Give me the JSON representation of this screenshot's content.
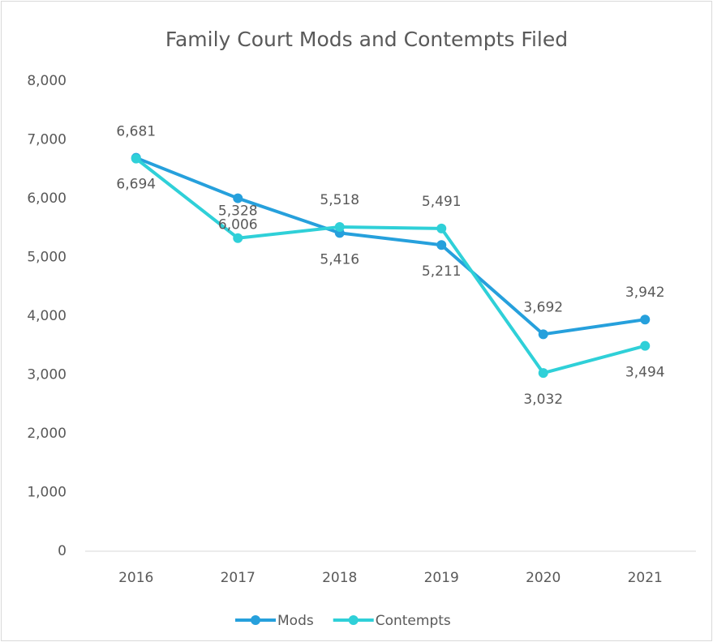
{
  "chart_data": {
    "type": "line",
    "title": "Family Court Mods and Contempts Filed",
    "categories": [
      "2016",
      "2017",
      "2018",
      "2019",
      "2020",
      "2021"
    ],
    "series": [
      {
        "name": "Mods",
        "color": "#26a0dc",
        "values": [
          6694,
          6006,
          5416,
          5211,
          3692,
          3942
        ]
      },
      {
        "name": "Contempts",
        "color": "#2fd0d8",
        "values": [
          6681,
          5328,
          5518,
          5491,
          3032,
          3494
        ]
      }
    ],
    "value_labels": [
      [
        "6,694",
        "6,006",
        "5,416",
        "5,211",
        "3,692",
        "3,942"
      ],
      [
        "6,681",
        "5,328",
        "5,518",
        "5,491",
        "3,032",
        "3,494"
      ]
    ],
    "ylim": [
      0,
      8000
    ],
    "yticks": [
      0,
      {
        "value": 1000,
        "label": "1,000"
      },
      {
        "value": 2000,
        "label": "2,000"
      },
      {
        "value": 3000,
        "label": "3,000"
      },
      {
        "value": 4000,
        "label": "4,000"
      },
      {
        "value": 5000,
        "label": "5,000"
      },
      {
        "value": 6000,
        "label": "6,000"
      },
      {
        "value": 7000,
        "label": "7,000"
      },
      {
        "value": 8000,
        "label": "8,000"
      }
    ],
    "grid": false,
    "legend": "bottom"
  }
}
